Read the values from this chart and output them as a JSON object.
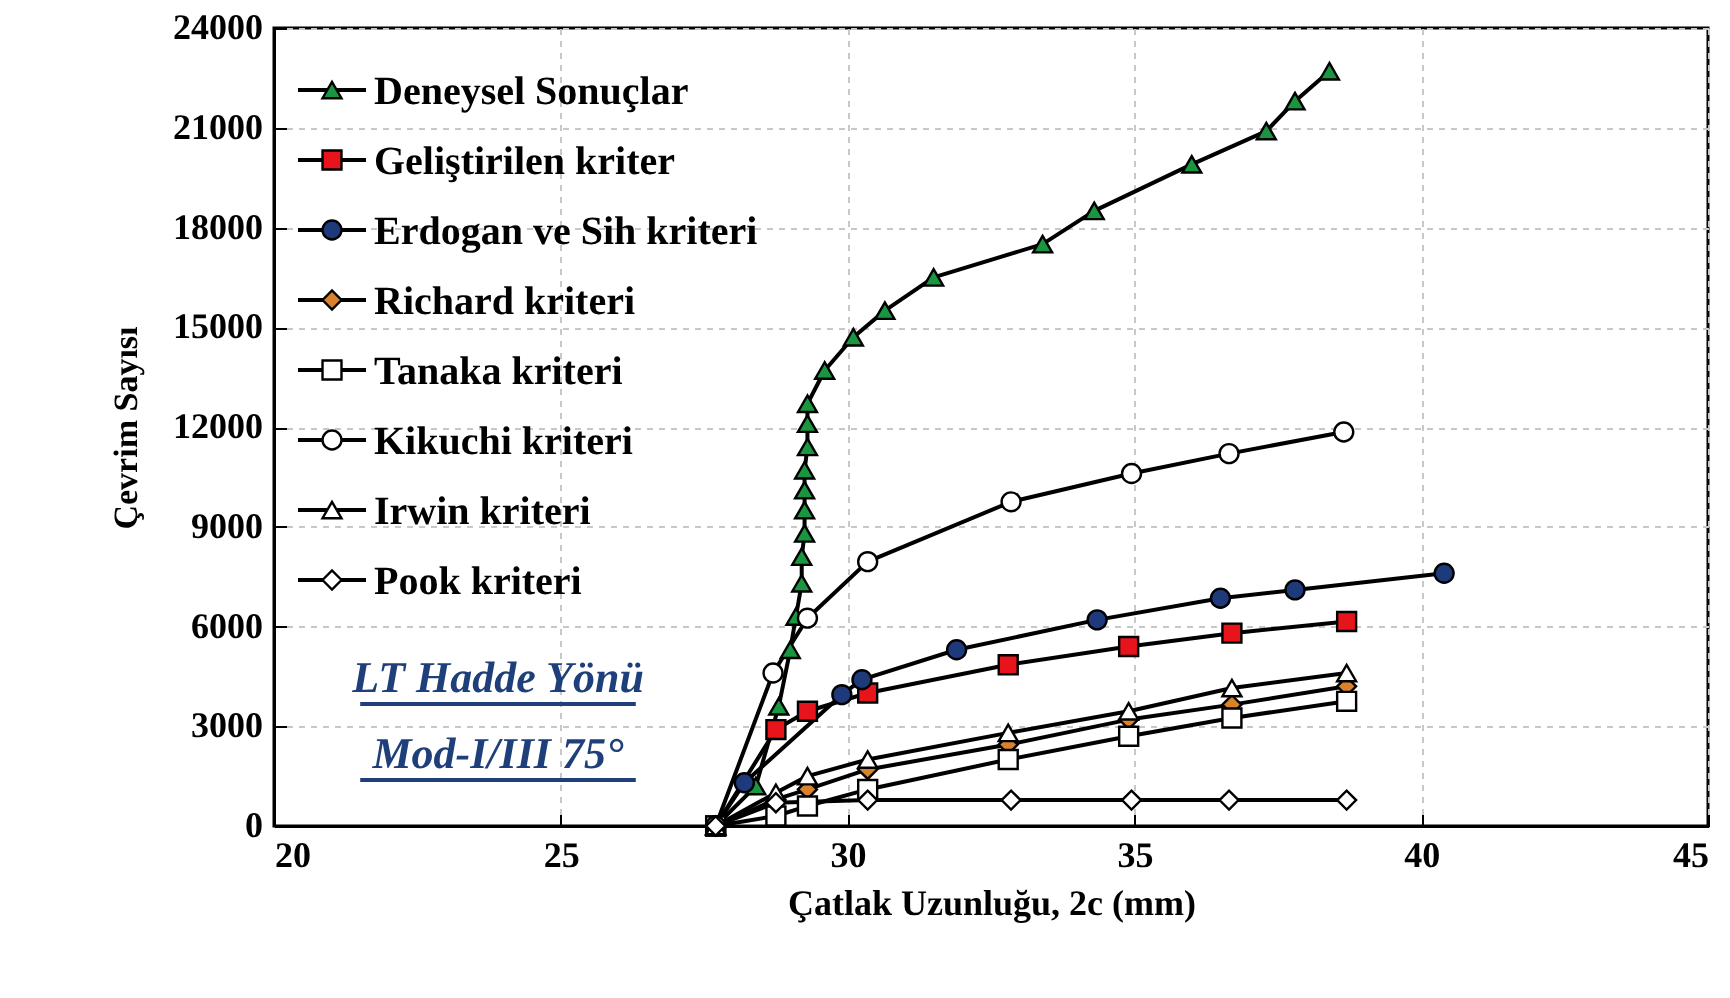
{
  "chart_data": {
    "type": "line",
    "xlabel": "Çatlak Uzunluğu, 2c (mm)",
    "ylabel": "Çevrim Sayısı",
    "xlim": [
      20,
      45
    ],
    "xticks": [
      20,
      25,
      30,
      35,
      40,
      45
    ],
    "ylim": [
      0,
      24000
    ],
    "yticks": [
      0,
      3000,
      6000,
      9000,
      12000,
      15000,
      18000,
      21000,
      24000
    ],
    "grid": true,
    "legend": "top left",
    "line_style": "solid",
    "annotations": [
      "LT Hadde Yönü",
      "Mod-I/III 75°"
    ],
    "series": [
      {
        "name": "Deneysel Sonuçlar",
        "color": "#1a9641",
        "marker": "triangle",
        "x": [
          27.7,
          28.4,
          28.8,
          29.0,
          29.1,
          29.2,
          29.2,
          29.25,
          29.25,
          29.25,
          29.25,
          29.3,
          29.3,
          29.3,
          29.6,
          30.1,
          30.65,
          31.5,
          33.4,
          34.3,
          36.0,
          37.3,
          37.8,
          38.4
        ],
        "values": [
          0,
          1200,
          3600,
          5300,
          6300,
          7300,
          8100,
          8800,
          9500,
          10100,
          10700,
          11400,
          12100,
          12700,
          13700,
          14700,
          15500,
          16500,
          17500,
          18500,
          19900,
          20900,
          21800,
          22700
        ]
      },
      {
        "name": "Geliştirilen kriter",
        "color": "#e8141b",
        "marker": "square",
        "x": [
          27.7,
          28.75,
          29.3,
          30.35,
          32.8,
          34.9,
          36.7,
          38.7
        ],
        "values": [
          0,
          2900,
          3450,
          4000,
          4850,
          5400,
          5800,
          6150
        ]
      },
      {
        "name": "Erdogan ve Sih kriteri",
        "color": "#1f3a7a",
        "marker": "circle",
        "x": [
          27.7,
          28.2,
          29.9,
          30.25,
          31.9,
          34.35,
          36.5,
          37.8,
          40.4
        ],
        "values": [
          0,
          1300,
          3950,
          4400,
          5300,
          6200,
          6850,
          7100,
          7600
        ]
      },
      {
        "name": "Richard kriteri",
        "color": "#d9822b",
        "marker": "diamond",
        "x": [
          27.7,
          28.75,
          29.3,
          30.35,
          32.8,
          34.9,
          36.7,
          38.7
        ],
        "values": [
          0,
          800,
          1100,
          1700,
          2450,
          3200,
          3650,
          4200
        ]
      },
      {
        "name": "Tanaka kriteri",
        "color": "#ffffff",
        "marker": "square",
        "x": [
          27.7,
          28.75,
          29.3,
          30.35,
          32.8,
          34.9,
          36.7,
          38.7
        ],
        "values": [
          0,
          300,
          600,
          1100,
          2000,
          2700,
          3250,
          3750
        ]
      },
      {
        "name": "Kikuchi kriteri",
        "color": "#ffffff",
        "marker": "circle",
        "x": [
          27.7,
          28.7,
          29.3,
          30.35,
          32.85,
          34.95,
          36.65,
          38.65
        ],
        "values": [
          0,
          4600,
          6250,
          7950,
          9750,
          10600,
          11200,
          11850
        ]
      },
      {
        "name": "Irwin kriteri",
        "color": "#ffffff",
        "marker": "triangle",
        "x": [
          27.7,
          28.75,
          29.3,
          30.35,
          32.8,
          34.9,
          36.7,
          38.7
        ],
        "values": [
          0,
          1000,
          1500,
          2000,
          2800,
          3450,
          4150,
          4600
        ]
      },
      {
        "name": "Pook kriteri",
        "color": "#ffffff",
        "marker": "diamond",
        "x": [
          27.7,
          28.75,
          30.35,
          32.85,
          34.95,
          36.65,
          38.7
        ],
        "values": [
          0,
          700,
          780,
          780,
          780,
          780,
          780
        ]
      }
    ]
  }
}
